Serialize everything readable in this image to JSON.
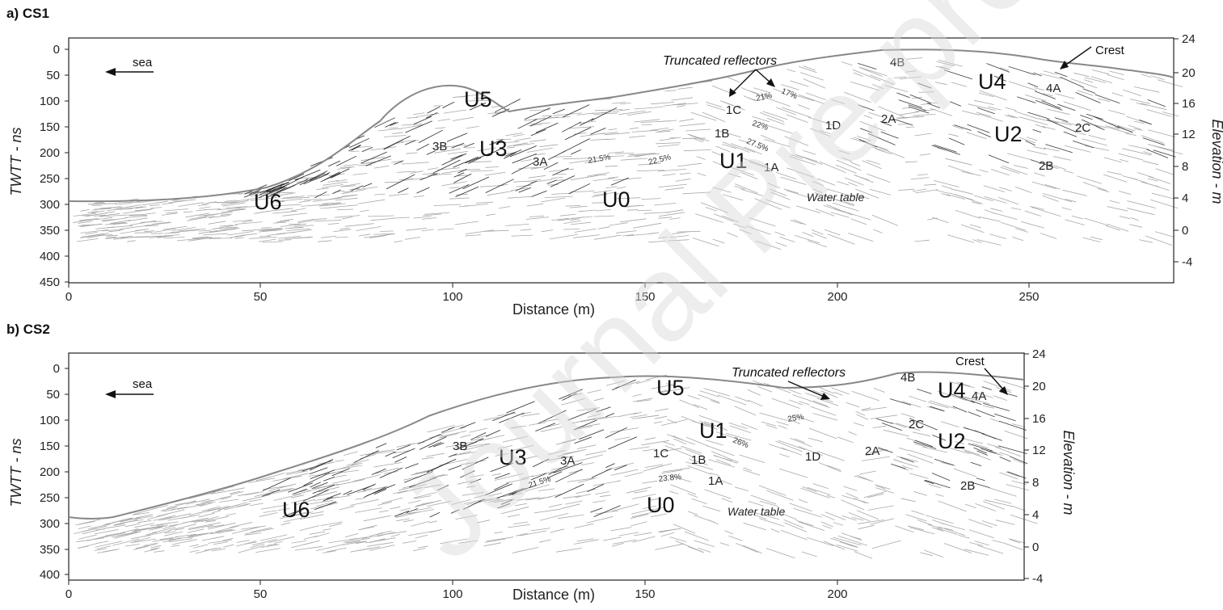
{
  "panels": [
    {
      "title": "a) CS1",
      "sea_label": "sea",
      "x_axis_label": "Distance (m)",
      "y_left_label": "TWTT - ns",
      "y_right_label": "Elevation - m",
      "x_ticks": [
        "0",
        "50",
        "100",
        "150",
        "200",
        "250"
      ],
      "y_left_ticks": [
        "0",
        "50",
        "100",
        "150",
        "200",
        "250",
        "300",
        "350",
        "400",
        "450"
      ],
      "y_right_ticks": [
        "24",
        "20",
        "16",
        "12",
        "8",
        "4",
        "0",
        "-4"
      ],
      "annotations": {
        "truncated": "Truncated reflectors",
        "crest": "Crest",
        "water_table": "Water table"
      },
      "units": [
        "U0",
        "U1",
        "U2",
        "U3",
        "U4",
        "U5",
        "U6"
      ],
      "subunits": [
        "1A",
        "1B",
        "1C",
        "1D",
        "2A",
        "2B",
        "2C",
        "3A",
        "3B",
        "4A",
        "4B"
      ],
      "dips": [
        "21.5%",
        "22.5%",
        "27.5%",
        "22%",
        "21%",
        "17%"
      ]
    },
    {
      "title": "b) CS2",
      "sea_label": "sea",
      "x_axis_label": "Distance (m)",
      "y_left_label": "TWTT - ns",
      "y_right_label": "Elevation - m",
      "x_ticks": [
        "0",
        "50",
        "100",
        "150",
        "200"
      ],
      "y_left_ticks": [
        "0",
        "50",
        "100",
        "150",
        "200",
        "250",
        "300",
        "350",
        "400"
      ],
      "y_right_ticks": [
        "24",
        "20",
        "16",
        "12",
        "8",
        "4",
        "0",
        "-4"
      ],
      "annotations": {
        "truncated": "Truncated reflectors",
        "crest": "Crest",
        "water_table": "Water table"
      },
      "units": [
        "U0",
        "U1",
        "U2",
        "U3",
        "U4",
        "U5",
        "U6"
      ],
      "subunits": [
        "1A",
        "1B",
        "1C",
        "1D",
        "2A",
        "2B",
        "2C",
        "3A",
        "3B",
        "4A",
        "4B"
      ],
      "dips": [
        "21.5%",
        "23.8%",
        "26%",
        "25%"
      ]
    }
  ],
  "watermark": "Journal Pre-proof",
  "colors": {
    "frame": "#222222",
    "reflector_light": "#9a9a9a",
    "reflector_dark": "#222222",
    "surface": "#888888"
  }
}
